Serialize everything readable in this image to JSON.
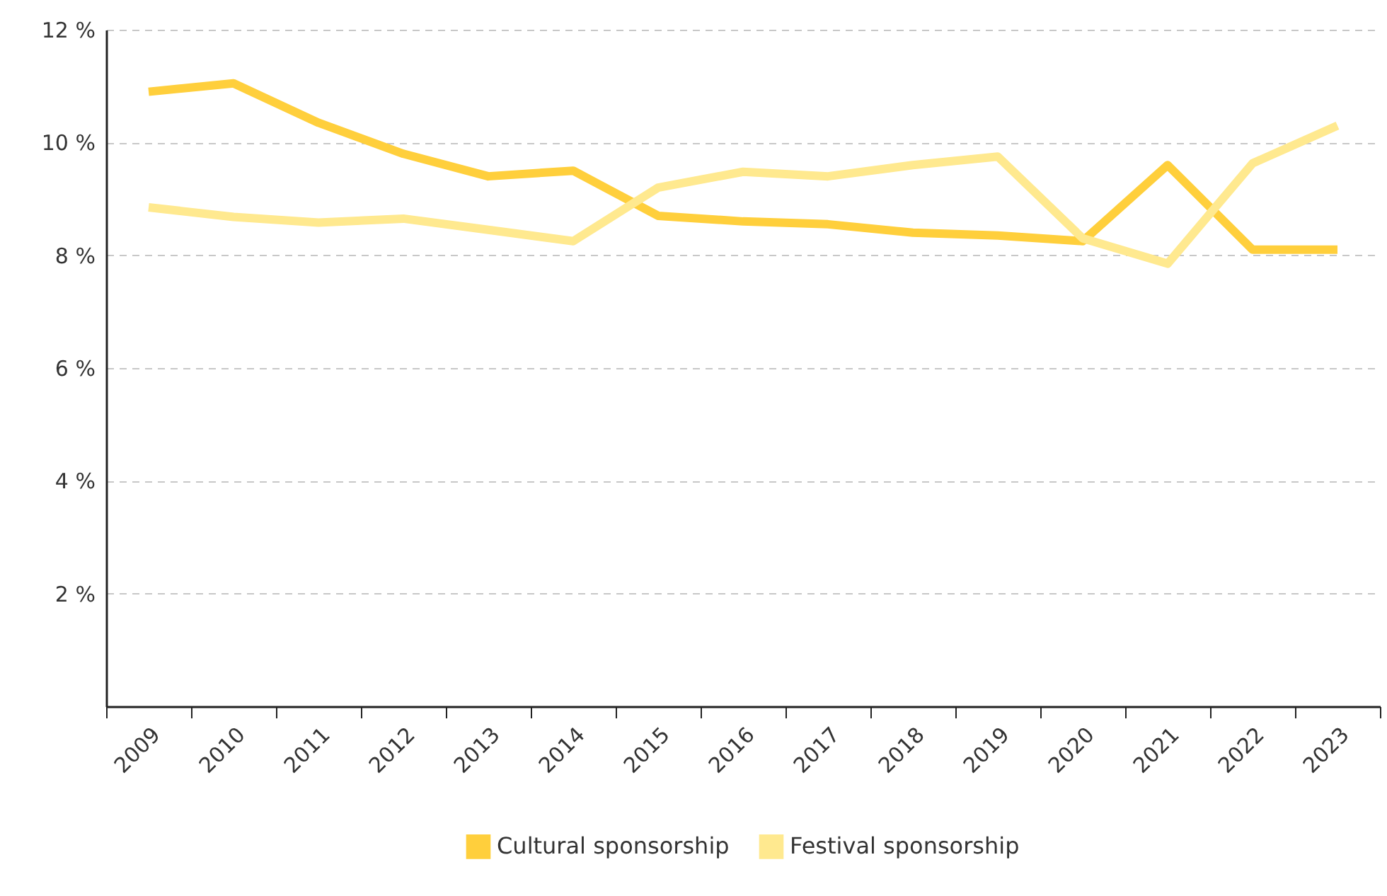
{
  "chart_data": {
    "type": "line",
    "categories": [
      "2009",
      "2010",
      "2011",
      "2012",
      "2013",
      "2014",
      "2015",
      "2016",
      "2017",
      "2018",
      "2019",
      "2020",
      "2021",
      "2022",
      "2023"
    ],
    "series": [
      {
        "name": "Cultural sponsorship",
        "color": "#ffcf3c",
        "values": [
          10.9,
          11.05,
          10.35,
          9.8,
          9.4,
          9.5,
          8.7,
          8.6,
          8.55,
          8.4,
          8.35,
          8.25,
          9.6,
          8.1,
          8.1
        ]
      },
      {
        "name": "Festival sponsorship",
        "color": "#ffe98f",
        "values": [
          8.85,
          8.68,
          8.58,
          8.65,
          8.45,
          8.25,
          9.2,
          9.48,
          9.4,
          9.6,
          9.75,
          8.3,
          7.85,
          9.63,
          10.3
        ]
      }
    ],
    "ylim": [
      0,
      12
    ],
    "yticks": [
      {
        "value": 2,
        "label": "2 %"
      },
      {
        "value": 4,
        "label": "4 %"
      },
      {
        "value": 6,
        "label": "6 %"
      },
      {
        "value": 8,
        "label": "8 %"
      },
      {
        "value": 10,
        "label": "10 %"
      },
      {
        "value": 12,
        "label": "12 %"
      }
    ],
    "grid": "y",
    "legend": "bottom",
    "marker": "none",
    "line_style": "solid"
  }
}
